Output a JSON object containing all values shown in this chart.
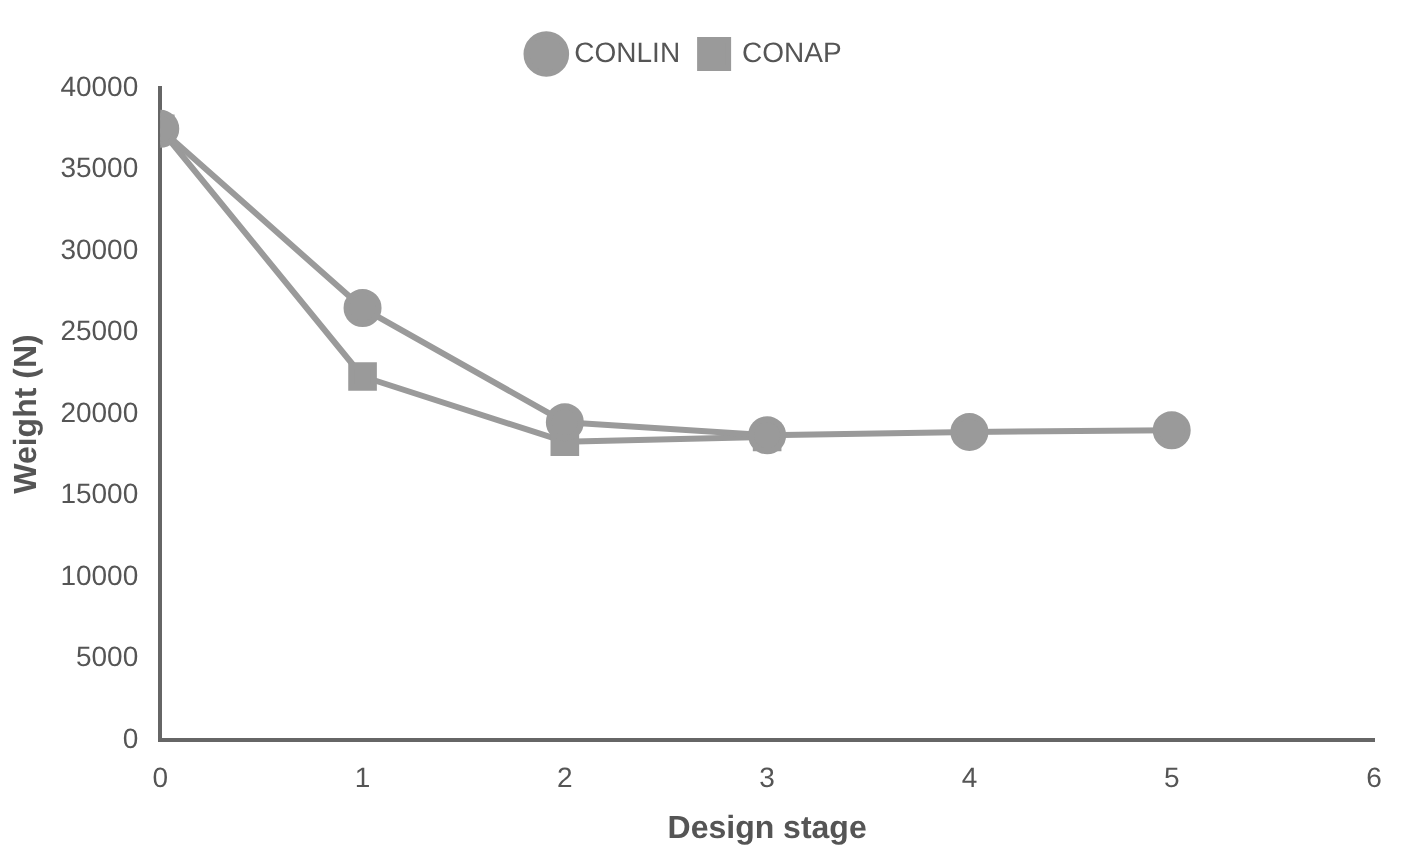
{
  "chart_data": {
    "type": "line",
    "xlabel": "Design stage",
    "ylabel": "Weight (N)",
    "x": [
      0,
      1,
      2,
      3,
      4,
      5
    ],
    "series": [
      {
        "name": "CONLIN",
        "color": "#9a9a9a",
        "marker": "circle",
        "values": [
          37500,
          26500,
          19500,
          18700,
          18900,
          19000
        ]
      },
      {
        "name": "CONAP",
        "color": "#9a9a9a",
        "marker": "square",
        "values": [
          37500,
          22300,
          18300,
          18600,
          null,
          null
        ]
      }
    ],
    "xlim": [
      0,
      6
    ],
    "xticks": [
      0,
      1,
      2,
      3,
      4,
      5,
      6
    ],
    "ylim": [
      0,
      40000
    ],
    "yticks": [
      0,
      5000,
      10000,
      15000,
      20000,
      25000,
      30000,
      35000,
      40000
    ],
    "grid": false,
    "legend": "top"
  }
}
